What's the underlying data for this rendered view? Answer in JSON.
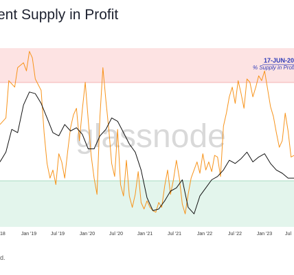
{
  "header": {
    "title": "ent Supply in Profit"
  },
  "watermark": "glassnode",
  "footer": {
    "note": "d."
  },
  "colors": {
    "price_line": "#111111",
    "supply_line": "#f7931a",
    "upper_band": "#fde3e3",
    "lower_band": "#e3f5ec",
    "upper_band_edge": "#f2a0a0",
    "lower_band_edge": "#8fd3b0",
    "annotation": "#2d3ab8"
  },
  "chart_data": {
    "type": "line",
    "x_ticks": [
      "18",
      "Jan '19",
      "Jul '19",
      "Jan '20",
      "Jul '20",
      "Jan '21",
      "Jul '21",
      "Jan '22",
      "Jul '22",
      "Jan '23",
      "Jul"
    ],
    "bands": [
      {
        "name": "upper",
        "from": 95,
        "to": 100
      },
      {
        "name": "lower",
        "from": 0,
        "to": 50
      }
    ],
    "annotation": {
      "date": "17-JUN-20",
      "label": "% Supply in Profi"
    },
    "series": [
      {
        "key": "price",
        "color": "#111111",
        "points": [
          [
            0,
            160
          ],
          [
            0.02,
            172
          ],
          [
            0.04,
            200
          ],
          [
            0.06,
            196
          ],
          [
            0.08,
            230
          ],
          [
            0.1,
            246
          ],
          [
            0.12,
            244
          ],
          [
            0.14,
            232
          ],
          [
            0.16,
            214
          ],
          [
            0.18,
            196
          ],
          [
            0.2,
            192
          ],
          [
            0.22,
            206
          ],
          [
            0.24,
            198
          ],
          [
            0.26,
            202
          ],
          [
            0.28,
            194
          ],
          [
            0.3,
            176
          ],
          [
            0.32,
            176
          ],
          [
            0.34,
            192
          ],
          [
            0.36,
            200
          ],
          [
            0.38,
            214
          ],
          [
            0.4,
            210
          ],
          [
            0.42,
            196
          ],
          [
            0.44,
            182
          ],
          [
            0.46,
            172
          ],
          [
            0.48,
            150
          ],
          [
            0.5,
            116
          ],
          [
            0.52,
            100
          ],
          [
            0.54,
            102
          ],
          [
            0.56,
            112
          ],
          [
            0.58,
            124
          ],
          [
            0.6,
            128
          ],
          [
            0.62,
            138
          ],
          [
            0.64,
            104
          ],
          [
            0.66,
            96
          ],
          [
            0.68,
            118
          ],
          [
            0.7,
            128
          ],
          [
            0.72,
            138
          ],
          [
            0.74,
            142
          ],
          [
            0.76,
            150
          ],
          [
            0.78,
            162
          ],
          [
            0.8,
            158
          ],
          [
            0.82,
            164
          ],
          [
            0.84,
            172
          ],
          [
            0.86,
            160
          ],
          [
            0.88,
            166
          ],
          [
            0.9,
            170
          ],
          [
            0.92,
            158
          ],
          [
            0.94,
            150
          ],
          [
            0.96,
            146
          ],
          [
            0.98,
            140
          ],
          [
            1.0,
            140
          ]
        ]
      },
      {
        "key": "supply",
        "color": "#f7931a",
        "points": [
          [
            0,
            206
          ],
          [
            0.02,
            214
          ],
          [
            0.03,
            260
          ],
          [
            0.05,
            252
          ],
          [
            0.06,
            276
          ],
          [
            0.08,
            282
          ],
          [
            0.09,
            272
          ],
          [
            0.1,
            296
          ],
          [
            0.11,
            288
          ],
          [
            0.12,
            262
          ],
          [
            0.14,
            248
          ],
          [
            0.15,
            196
          ],
          [
            0.16,
            158
          ],
          [
            0.17,
            140
          ],
          [
            0.18,
            150
          ],
          [
            0.19,
            132
          ],
          [
            0.2,
            170
          ],
          [
            0.21,
            160
          ],
          [
            0.22,
            140
          ],
          [
            0.23,
            172
          ],
          [
            0.24,
            202
          ],
          [
            0.25,
            218
          ],
          [
            0.26,
            226
          ],
          [
            0.27,
            186
          ],
          [
            0.28,
            224
          ],
          [
            0.29,
            258
          ],
          [
            0.3,
            212
          ],
          [
            0.31,
            168
          ],
          [
            0.32,
            140
          ],
          [
            0.33,
            120
          ],
          [
            0.34,
            216
          ],
          [
            0.35,
            276
          ],
          [
            0.36,
            236
          ],
          [
            0.37,
            200
          ],
          [
            0.38,
            158
          ],
          [
            0.39,
            142
          ],
          [
            0.4,
            200
          ],
          [
            0.41,
            132
          ],
          [
            0.42,
            118
          ],
          [
            0.43,
            162
          ],
          [
            0.44,
            118
          ],
          [
            0.45,
            104
          ],
          [
            0.46,
            120
          ],
          [
            0.47,
            148
          ],
          [
            0.48,
            110
          ],
          [
            0.49,
            102
          ],
          [
            0.5,
            112
          ],
          [
            0.51,
            104
          ],
          [
            0.52,
            100
          ],
          [
            0.53,
            98
          ],
          [
            0.54,
            110
          ],
          [
            0.55,
            104
          ],
          [
            0.56,
            130
          ],
          [
            0.57,
            150
          ],
          [
            0.58,
            120
          ],
          [
            0.59,
            138
          ],
          [
            0.6,
            162
          ],
          [
            0.61,
            140
          ],
          [
            0.62,
            108
          ],
          [
            0.63,
            96
          ],
          [
            0.64,
            120
          ],
          [
            0.65,
            140
          ],
          [
            0.66,
            150
          ],
          [
            0.67,
            160
          ],
          [
            0.68,
            146
          ],
          [
            0.69,
            170
          ],
          [
            0.7,
            150
          ],
          [
            0.71,
            160
          ],
          [
            0.72,
            148
          ],
          [
            0.73,
            168
          ],
          [
            0.74,
            166
          ],
          [
            0.75,
            142
          ],
          [
            0.76,
            204
          ],
          [
            0.77,
            220
          ],
          [
            0.78,
            240
          ],
          [
            0.79,
            252
          ],
          [
            0.8,
            232
          ],
          [
            0.81,
            260
          ],
          [
            0.82,
            244
          ],
          [
            0.83,
            226
          ],
          [
            0.84,
            262
          ],
          [
            0.85,
            258
          ],
          [
            0.86,
            240
          ],
          [
            0.87,
            252
          ],
          [
            0.88,
            266
          ],
          [
            0.89,
            260
          ],
          [
            0.9,
            272
          ],
          [
            0.91,
            250
          ],
          [
            0.92,
            228
          ],
          [
            0.93,
            216
          ],
          [
            0.94,
            196
          ],
          [
            0.95,
            178
          ],
          [
            0.96,
            186
          ],
          [
            0.97,
            220
          ],
          [
            0.98,
            198
          ],
          [
            0.99,
            166
          ],
          [
            1.0,
            168
          ]
        ]
      }
    ]
  }
}
